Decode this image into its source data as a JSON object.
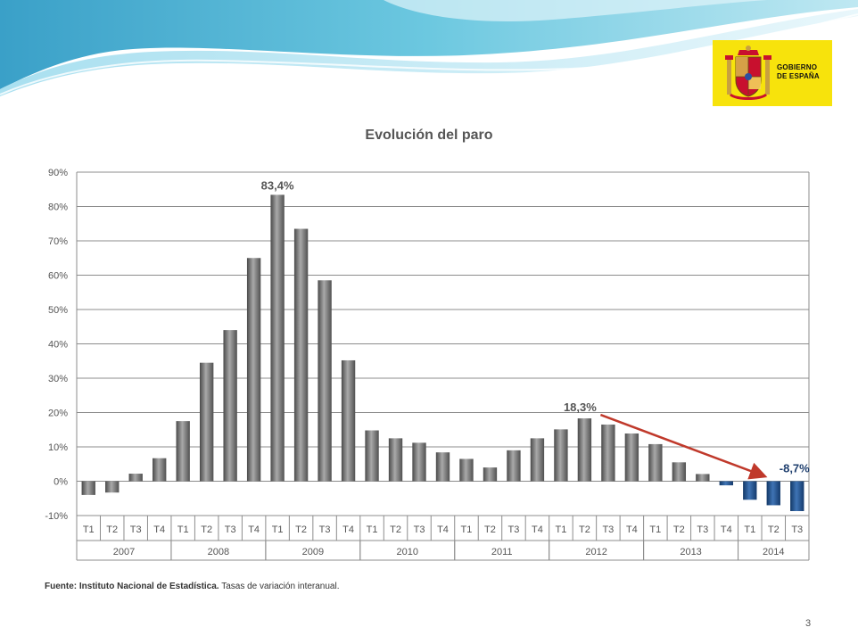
{
  "logo": {
    "line1": "GOBIERNO",
    "line2": "DE ESPAÑA",
    "background": "#f7e30c"
  },
  "colors": {
    "positive_bar": "#7f7f7f",
    "negative_bar": "#1f4e8c",
    "arrow": "#c0392b",
    "annotation_blue": "#1f3f6e"
  },
  "chart_data": {
    "type": "bar",
    "title": "Evolución  del paro",
    "ylim": [
      -10,
      90
    ],
    "yticks": [
      -10,
      0,
      10,
      20,
      30,
      40,
      50,
      60,
      70,
      80,
      90
    ],
    "ytick_labels": [
      "-10%",
      "0%",
      "10%",
      "20%",
      "30%",
      "40%",
      "50%",
      "60%",
      "70%",
      "80%",
      "90%"
    ],
    "grid": true,
    "years": [
      "2007",
      "2008",
      "2009",
      "2010",
      "2011",
      "2012",
      "2013",
      "2014"
    ],
    "quarters": [
      [
        "T1",
        "T2",
        "T3",
        "T4"
      ],
      [
        "T1",
        "T2",
        "T3",
        "T4"
      ],
      [
        "T1",
        "T2",
        "T3",
        "T4"
      ],
      [
        "T1",
        "T2",
        "T3",
        "T4"
      ],
      [
        "T1",
        "T2",
        "T3",
        "T4"
      ],
      [
        "T1",
        "T2",
        "T3",
        "T4"
      ],
      [
        "T1",
        "T2",
        "T3",
        "T4"
      ],
      [
        "T1",
        "T2",
        "T3"
      ]
    ],
    "values": [
      -4.0,
      -3.3,
      2.2,
      6.7,
      17.5,
      34.5,
      44.0,
      65.0,
      83.4,
      73.5,
      58.5,
      35.2,
      14.8,
      12.5,
      11.2,
      8.4,
      6.5,
      4.0,
      9.0,
      12.5,
      15.1,
      18.3,
      16.5,
      13.9,
      10.8,
      5.5,
      2.1,
      -1.2,
      -5.4,
      -7.0,
      -8.7
    ],
    "annotations": [
      {
        "text": "83,4%",
        "index": 8
      },
      {
        "text": "18,3%",
        "index": 21
      },
      {
        "text": "-8,7%",
        "index": 30
      }
    ],
    "arrow": {
      "from_index": 21,
      "to_index": 30
    }
  },
  "footer": {
    "source_bold": "Fuente: Instituto Nacional de Estadística.",
    "source_text": " Tasas de variación interanual."
  },
  "page_number": "3"
}
